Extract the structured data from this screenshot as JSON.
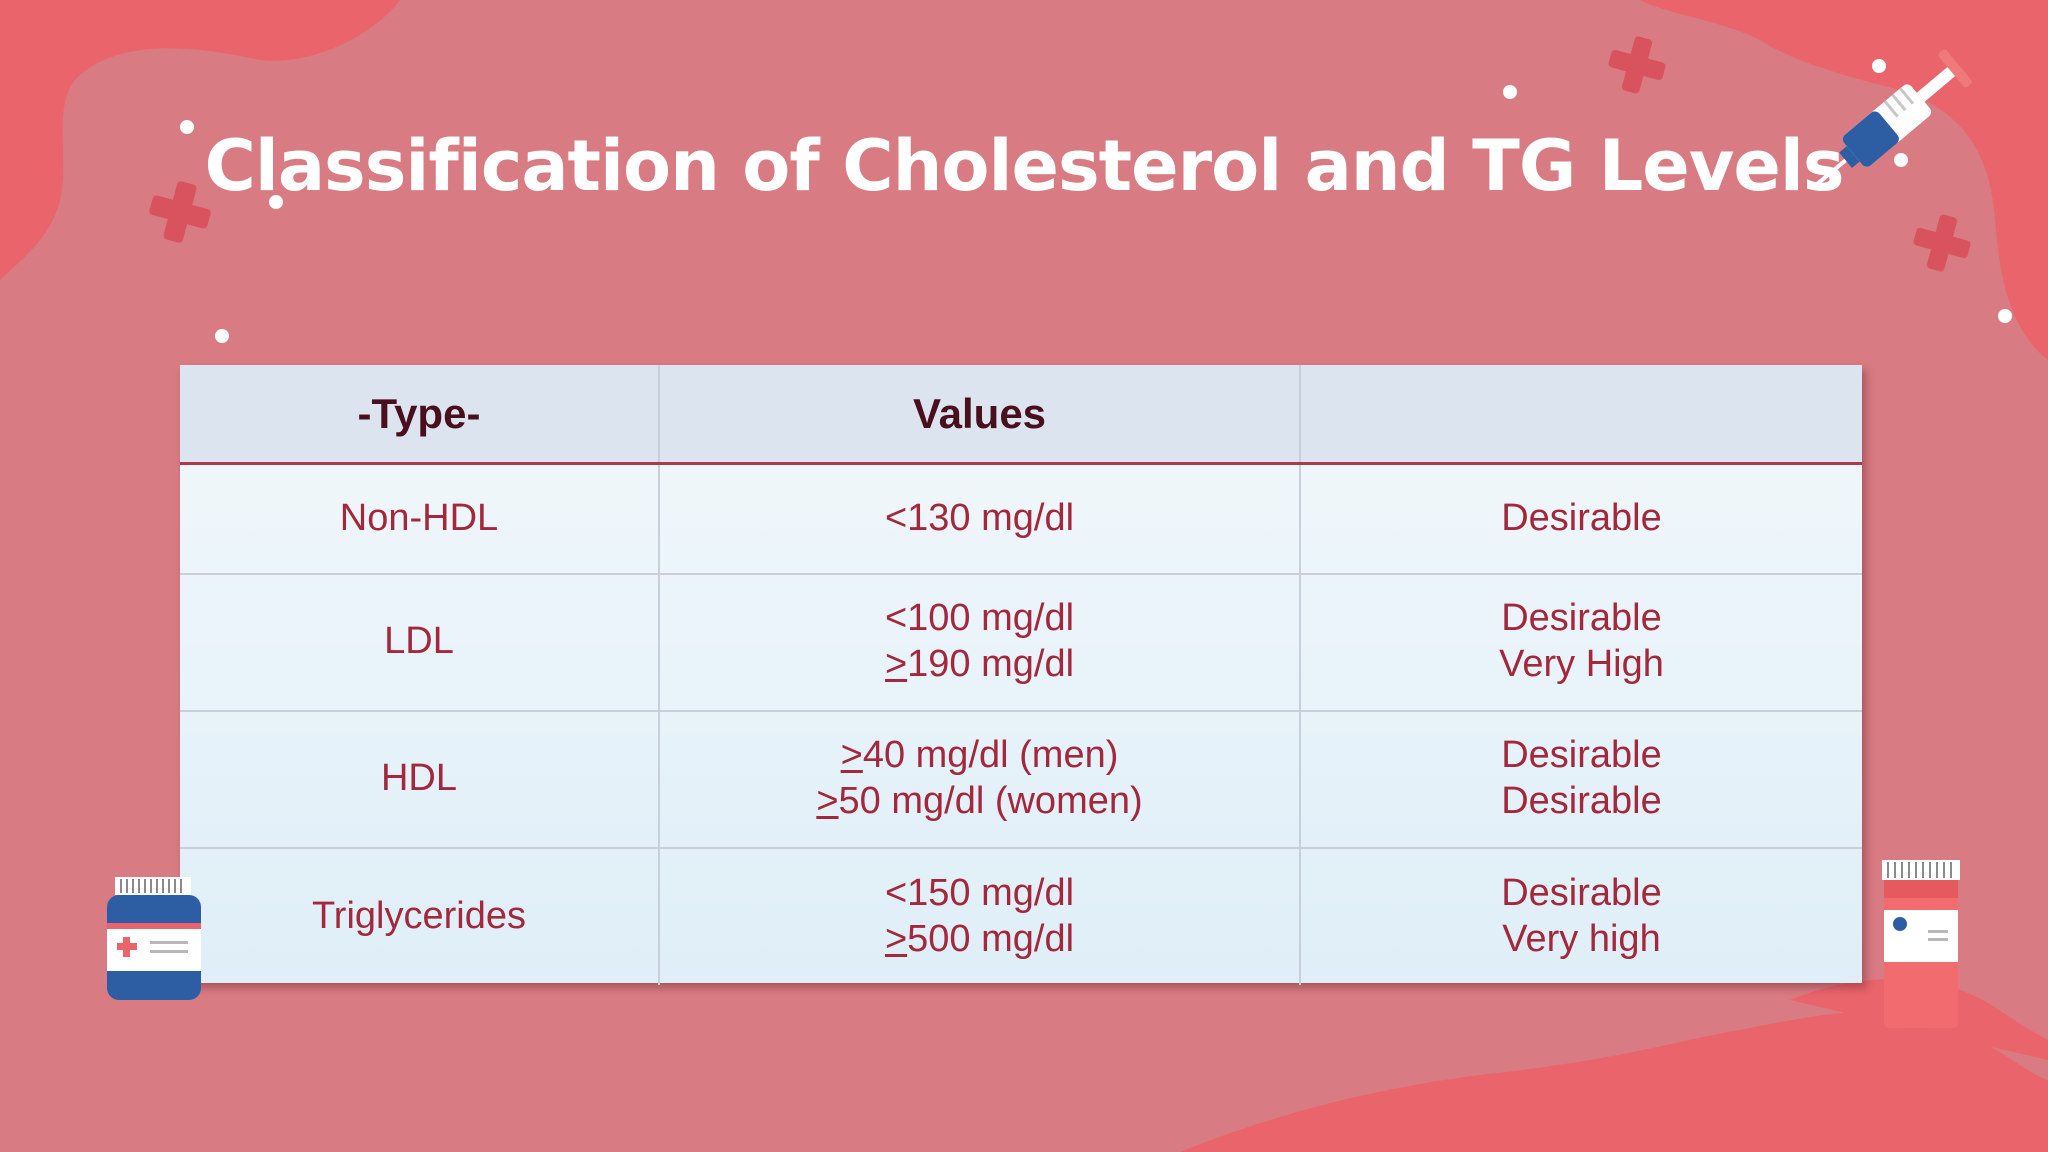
{
  "title": "Classification of Cholesterol and TG Levels",
  "colors": {
    "background": "#d97b82",
    "blob": "#e9646b",
    "header_bg": "#dce4ef",
    "header_text": "#4a0f1c",
    "cell_text": "#a3283c"
  },
  "table": {
    "headers": [
      "-Type-",
      "Values",
      ""
    ],
    "rows": [
      {
        "type": "Non-HDL",
        "values": [
          "<130 mg/dl"
        ],
        "levels": [
          "Desirable"
        ]
      },
      {
        "type": "LDL",
        "values": [
          "<100 mg/dl",
          ">190 mg/dl"
        ],
        "levels": [
          "Desirable",
          "Very High"
        ]
      },
      {
        "type": "HDL",
        "values": [
          ">40 mg/dl (men)",
          ">50 mg/dl (women)"
        ],
        "levels": [
          "Desirable",
          "Desirable"
        ]
      },
      {
        "type": "Triglycerides",
        "values": [
          "<150 mg/dl",
          ">500 mg/dl"
        ],
        "levels": [
          "Desirable",
          "Very high"
        ]
      }
    ]
  },
  "icons": [
    "syringe-icon",
    "medicine-bottle-blue-icon",
    "medicine-bottle-red-icon",
    "plus-cross-icon",
    "dot-decoration"
  ]
}
